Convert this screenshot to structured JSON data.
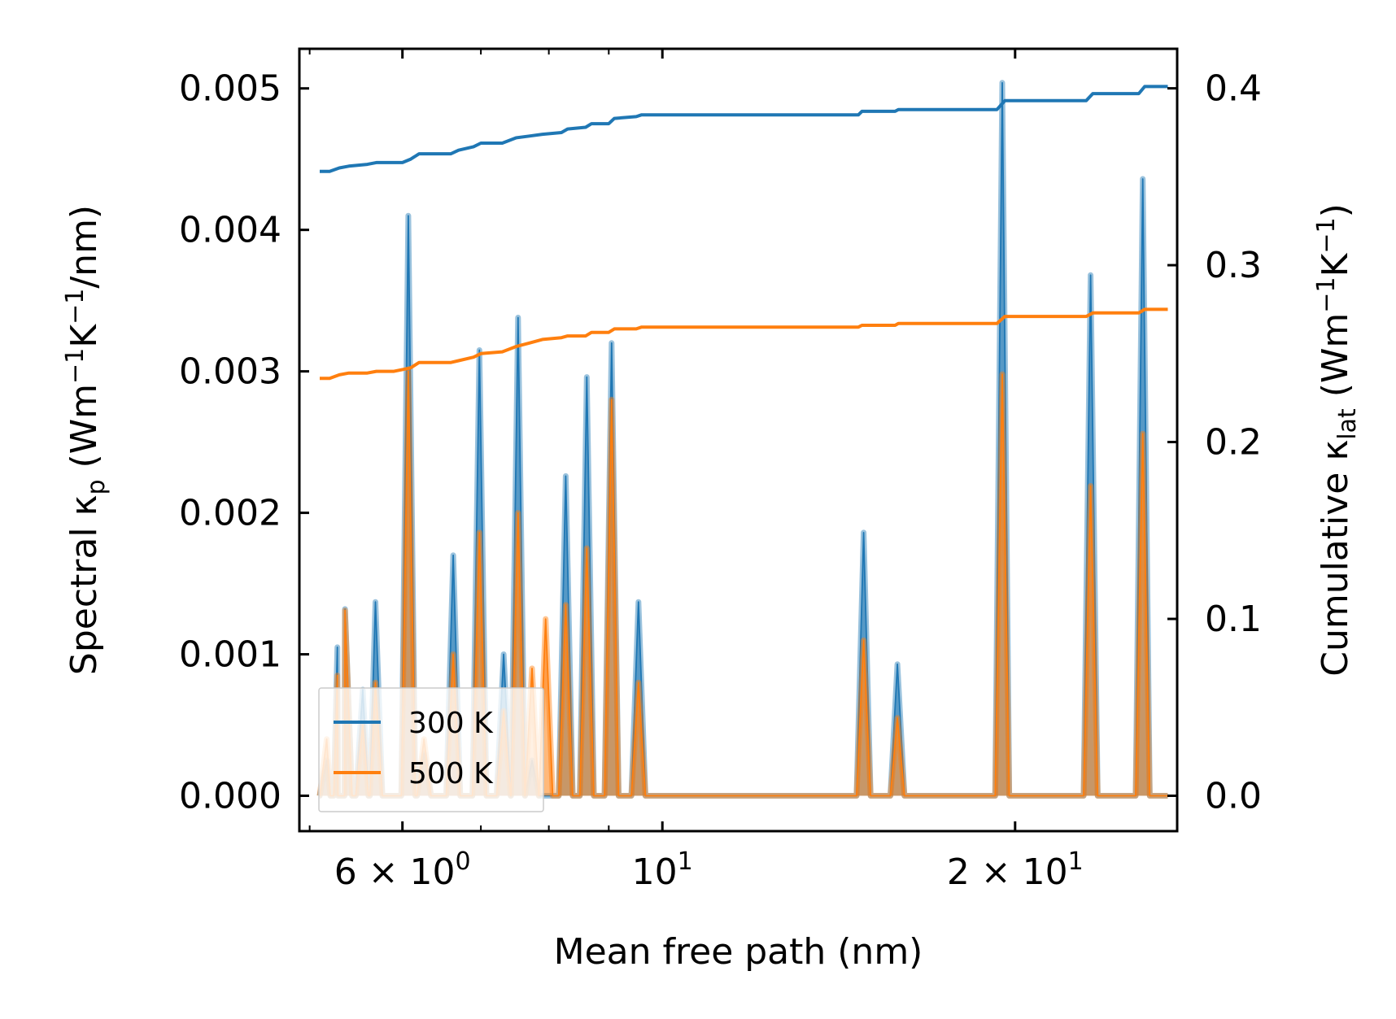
{
  "chart_data": {
    "type": "line",
    "x_scale": "log",
    "xlabel": "Mean free path (nm)",
    "ylabel_left": {
      "text": "Spectral κ",
      "sub": "p",
      "units_pre": " (Wm",
      "sup1": "−1",
      "units_mid": "K",
      "sup2": "−1",
      "units_post": "/nm)"
    },
    "ylabel_right": {
      "text": "Cumulative κ",
      "sub": "lat",
      "units_pre": " (Wm",
      "sup1": "−1",
      "units_mid": "K",
      "sup2": "−1",
      "units_post": ")"
    },
    "xlim": [
      4.9,
      27.5
    ],
    "ylim_left": [
      -0.00025,
      0.00528
    ],
    "ylim_right": [
      -0.02,
      0.42235
    ],
    "x_ticks": [
      {
        "value": 6,
        "mant": "6",
        "times": "×",
        "base": "10",
        "exp": "0"
      },
      {
        "value": 10,
        "mant": "",
        "times": "",
        "base": "10",
        "exp": "1"
      },
      {
        "value": 20,
        "mant": "2",
        "times": "×",
        "base": "10",
        "exp": "1"
      }
    ],
    "x_minor_ticks": [
      5,
      7,
      8,
      9
    ],
    "y_left_ticks": [
      "0.000",
      "0.001",
      "0.002",
      "0.003",
      "0.004",
      "0.005"
    ],
    "y_right_ticks": [
      "0.0",
      "0.1",
      "0.2",
      "0.3",
      "0.4"
    ],
    "colors": {
      "c300": "#1f77b4",
      "c500": "#ff7f0e",
      "axis": "#000000"
    },
    "series": [
      {
        "name": "300 K",
        "axis": "left",
        "kind": "spectral",
        "peaks": [
          [
            5.17,
            0.00025
          ],
          [
            5.28,
            0.00105
          ],
          [
            5.36,
            0.00132
          ],
          [
            5.55,
            0.00075
          ],
          [
            5.69,
            0.00137
          ],
          [
            6.07,
            0.0041
          ],
          [
            6.26,
            0.0003
          ],
          [
            6.63,
            0.0017
          ],
          [
            6.98,
            0.00315
          ],
          [
            7.32,
            0.001
          ],
          [
            7.53,
            0.00338
          ],
          [
            7.74,
            0.00025
          ],
          [
            8.27,
            0.00226
          ],
          [
            8.62,
            0.00296
          ],
          [
            9.05,
            0.0032
          ],
          [
            9.54,
            0.00137
          ],
          [
            14.85,
            0.00186
          ],
          [
            15.87,
            0.00093
          ],
          [
            19.5,
            0.00504
          ],
          [
            23.2,
            0.00368
          ],
          [
            25.7,
            0.00436
          ]
        ]
      },
      {
        "name": "500 K",
        "axis": "left",
        "kind": "spectral",
        "peaks": [
          [
            5.17,
            0.0004
          ],
          [
            5.28,
            0.00085
          ],
          [
            5.36,
            0.00131
          ],
          [
            5.55,
            0.0005
          ],
          [
            5.69,
            0.0008
          ],
          [
            6.07,
            0.003
          ],
          [
            6.26,
            0.0004
          ],
          [
            6.63,
            0.001
          ],
          [
            6.98,
            0.00186
          ],
          [
            7.32,
            0.0006
          ],
          [
            7.53,
            0.002
          ],
          [
            7.74,
            0.0009
          ],
          [
            7.95,
            0.00125
          ],
          [
            8.27,
            0.00135
          ],
          [
            8.62,
            0.00175
          ],
          [
            9.05,
            0.0028
          ],
          [
            9.54,
            0.0008
          ],
          [
            14.85,
            0.0011
          ],
          [
            15.87,
            0.00055
          ],
          [
            19.5,
            0.00298
          ],
          [
            23.2,
            0.00219
          ],
          [
            25.7,
            0.00256
          ]
        ]
      },
      {
        "name": "300 K",
        "axis": "right",
        "kind": "cumulative",
        "x": [
          5.1,
          5.2,
          5.3,
          5.4,
          5.6,
          5.7,
          5.9,
          6.0,
          6.1,
          6.2,
          6.5,
          6.6,
          6.7,
          6.9,
          7.0,
          7.3,
          7.5,
          7.7,
          7.9,
          8.2,
          8.3,
          8.6,
          8.7,
          9.0,
          9.1,
          9.5,
          9.6,
          12.0,
          14.7,
          14.8,
          15.8,
          15.9,
          19.3,
          19.6,
          23.0,
          23.3,
          25.5,
          25.8,
          27.0
        ],
        "y": [
          0.353,
          0.353,
          0.355,
          0.356,
          0.357,
          0.358,
          0.358,
          0.358,
          0.36,
          0.363,
          0.363,
          0.363,
          0.365,
          0.367,
          0.369,
          0.369,
          0.372,
          0.373,
          0.374,
          0.375,
          0.377,
          0.378,
          0.38,
          0.38,
          0.383,
          0.384,
          0.385,
          0.385,
          0.385,
          0.387,
          0.387,
          0.388,
          0.388,
          0.393,
          0.393,
          0.397,
          0.397,
          0.401,
          0.401
        ]
      },
      {
        "name": "500 K",
        "axis": "right",
        "kind": "cumulative",
        "x": [
          5.1,
          5.2,
          5.3,
          5.4,
          5.6,
          5.7,
          5.9,
          6.0,
          6.1,
          6.2,
          6.5,
          6.6,
          6.7,
          6.9,
          7.0,
          7.3,
          7.5,
          7.7,
          7.9,
          8.2,
          8.3,
          8.6,
          8.7,
          9.0,
          9.1,
          9.5,
          9.6,
          12.0,
          14.7,
          14.8,
          15.8,
          15.9,
          19.3,
          19.6,
          23.0,
          23.3,
          25.5,
          25.8,
          27.0
        ],
        "y": [
          0.236,
          0.236,
          0.238,
          0.239,
          0.239,
          0.24,
          0.24,
          0.241,
          0.242,
          0.245,
          0.245,
          0.245,
          0.246,
          0.248,
          0.25,
          0.251,
          0.254,
          0.256,
          0.258,
          0.259,
          0.26,
          0.26,
          0.262,
          0.262,
          0.264,
          0.264,
          0.265,
          0.265,
          0.265,
          0.266,
          0.266,
          0.267,
          0.267,
          0.271,
          0.271,
          0.273,
          0.273,
          0.275,
          0.275
        ]
      }
    ],
    "legend": {
      "placement": "lower-left",
      "entries": [
        {
          "label": "300 K",
          "color": "#1f77b4"
        },
        {
          "label": "500 K",
          "color": "#ff7f0e"
        }
      ]
    }
  }
}
